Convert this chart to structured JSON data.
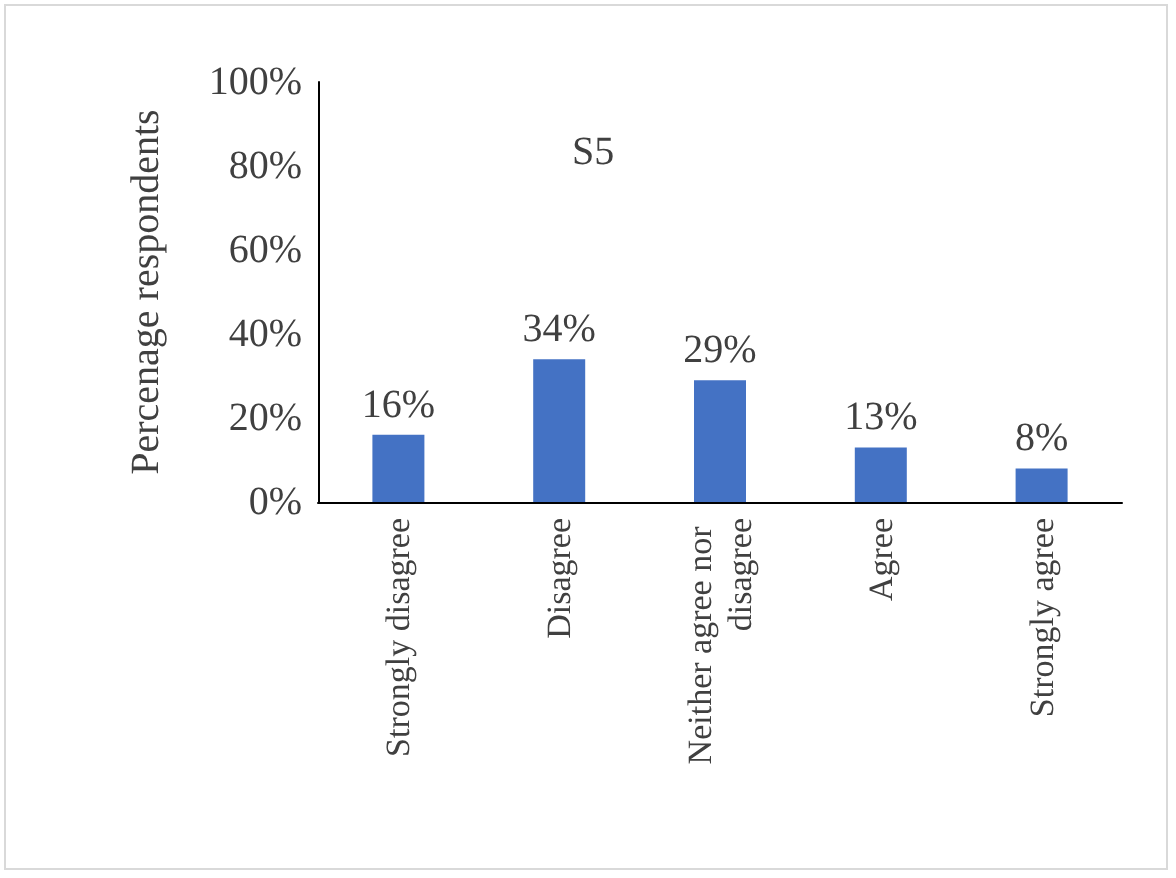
{
  "chart_data": {
    "type": "bar",
    "title": "S5",
    "ylabel": "Percenage respondents",
    "categories": [
      "Strongly disagree",
      "Disagree",
      "Neither agree nor disagree",
      "Agree",
      "Strongly agree"
    ],
    "values": [
      16,
      34,
      29,
      13,
      8
    ],
    "color": "#4472c4",
    "value_labels": [
      "16%",
      "34%",
      "29%",
      "13%",
      "8%"
    ],
    "ylim": [
      0,
      100
    ],
    "yticks": [
      {
        "value": 0,
        "label": "0%"
      },
      {
        "value": 20,
        "label": "20%"
      },
      {
        "value": 40,
        "label": "40%"
      },
      {
        "value": 60,
        "label": "60%"
      },
      {
        "value": 80,
        "label": "80%"
      },
      {
        "value": 100,
        "label": "100%"
      }
    ],
    "grid": false
  }
}
